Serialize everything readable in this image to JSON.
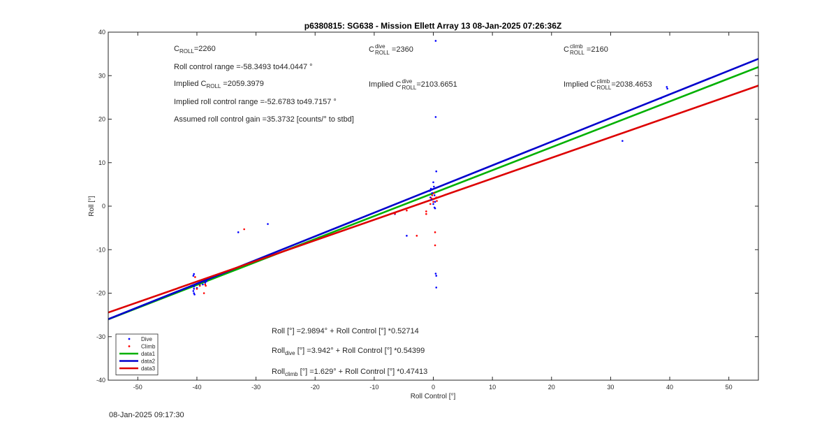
{
  "chart_data": {
    "type": "scatter",
    "title": "p6380815: SG638 - Mission Ellett Array 13 08-Jan-2025 07:26:36Z",
    "xlabel": "Roll Control [°]",
    "ylabel": "Roll [°]",
    "xlim": [
      -55,
      55
    ],
    "ylim": [
      -40,
      40
    ],
    "xticks": [
      -50,
      -40,
      -30,
      -20,
      -10,
      0,
      10,
      20,
      30,
      40,
      50
    ],
    "yticks": [
      -40,
      -30,
      -20,
      -10,
      0,
      10,
      20,
      30,
      40
    ],
    "grid": false,
    "legend_position": "bottom-left",
    "series": [
      {
        "name": "Dive",
        "kind": "points",
        "color": "#0000ff",
        "points": [
          [
            -40.5,
            -15.6
          ],
          [
            -40.6,
            -16.0
          ],
          [
            -40.5,
            -18.5
          ],
          [
            -40.5,
            -19.0
          ],
          [
            -40.6,
            -19.5
          ],
          [
            -40.5,
            -20.0
          ],
          [
            -40.4,
            -20.3
          ],
          [
            -40.0,
            -18.8
          ],
          [
            -39.5,
            -18.2
          ],
          [
            -39.0,
            -18.0
          ],
          [
            -38.6,
            -17.6
          ],
          [
            -38.4,
            -17.3
          ],
          [
            -33.0,
            -6.0
          ],
          [
            -28.0,
            -4.1
          ],
          [
            -6.5,
            -1.8
          ],
          [
            -4.5,
            -6.8
          ],
          [
            -0.6,
            3.5
          ],
          [
            -0.5,
            2.0
          ],
          [
            -0.4,
            4.0
          ],
          [
            -0.3,
            1.5
          ],
          [
            -0.2,
            3.0
          ],
          [
            0.0,
            5.5
          ],
          [
            0.0,
            0.5
          ],
          [
            0.1,
            4.5
          ],
          [
            0.2,
            -0.3
          ],
          [
            0.2,
            2.5
          ],
          [
            0.3,
            1.0
          ],
          [
            0.3,
            -0.5
          ],
          [
            0.4,
            38.0
          ],
          [
            0.4,
            20.5
          ],
          [
            0.5,
            8.0
          ],
          [
            0.4,
            -15.5
          ],
          [
            0.5,
            -16.0
          ],
          [
            0.5,
            -18.7
          ],
          [
            32.0,
            15.0
          ],
          [
            38.5,
            24.8
          ],
          [
            39.5,
            27.4
          ],
          [
            39.6,
            27.0
          ]
        ]
      },
      {
        "name": "Climb",
        "kind": "points",
        "color": "#ff0000",
        "points": [
          [
            -40.3,
            -16.3
          ],
          [
            -40.0,
            -19.0
          ],
          [
            -39.5,
            -18.3
          ],
          [
            -38.8,
            -20.0
          ],
          [
            -38.6,
            -18.0
          ],
          [
            -38.5,
            -18.3
          ],
          [
            -32.0,
            -5.3
          ],
          [
            -6.5,
            -1.7
          ],
          [
            -4.5,
            -1.0
          ],
          [
            -2.8,
            -6.8
          ],
          [
            -1.2,
            -1.2
          ],
          [
            -1.2,
            -1.8
          ],
          [
            -0.5,
            0.5
          ],
          [
            -0.3,
            1.8
          ],
          [
            -0.2,
            2.5
          ],
          [
            0.0,
            1.0
          ],
          [
            0.1,
            3.0
          ],
          [
            0.3,
            -6.0
          ],
          [
            0.3,
            -9.0
          ],
          [
            0.5,
            2.0
          ],
          [
            0.6,
            1.2
          ]
        ]
      },
      {
        "name": "data1",
        "kind": "line",
        "color": "#00b000",
        "intercept": 2.9894,
        "slope": 0.52714
      },
      {
        "name": "data2",
        "kind": "line",
        "color": "#0000cc",
        "intercept": 3.942,
        "slope": 0.54399
      },
      {
        "name": "data3",
        "kind": "line",
        "color": "#dd0000",
        "intercept": 1.629,
        "slope": 0.47413
      }
    ],
    "annotations": {
      "c_roll": {
        "base": "C",
        "sub": "ROLL",
        "value": "=2260"
      },
      "roll_range": "Roll control range =-58.3493 to44.0447 °",
      "implied_c_roll": {
        "pre": "Implied C",
        "sub": "ROLL",
        "value": " =2059.3979"
      },
      "implied_range": "Implied roll control range =-52.6783 to49.7157 °",
      "gain": "Assumed roll control gain =35.3732 [counts/° to stbd]",
      "c_roll_dive": {
        "base": "C",
        "sup": "dive",
        "sub": "ROLL",
        "value": " =2360"
      },
      "implied_dive": {
        "pre": "Implied C",
        "sup": "dive",
        "sub": "ROLL",
        "value": "=2103.6651"
      },
      "c_roll_climb": {
        "base": "C",
        "sup": "climb",
        "sub": "ROLL",
        "value": " =2160"
      },
      "implied_climb": {
        "pre": "Implied C",
        "sup": "climb",
        "sub": "ROLL",
        "value": "=2038.4653"
      },
      "fit_all": "Roll [°] =2.9894° + Roll Control [°] *0.52714",
      "fit_dive": {
        "pre": "Roll",
        "sub": "dive",
        "rest": " [°] =3.942° + Roll Control [°] *0.54399"
      },
      "fit_climb": {
        "pre": "Roll",
        "sub": "climb",
        "rest": " [°] =1.629° + Roll Control [°] *0.47413"
      }
    }
  },
  "footer": {
    "timestamp": "08-Jan-2025 09:17:30"
  }
}
